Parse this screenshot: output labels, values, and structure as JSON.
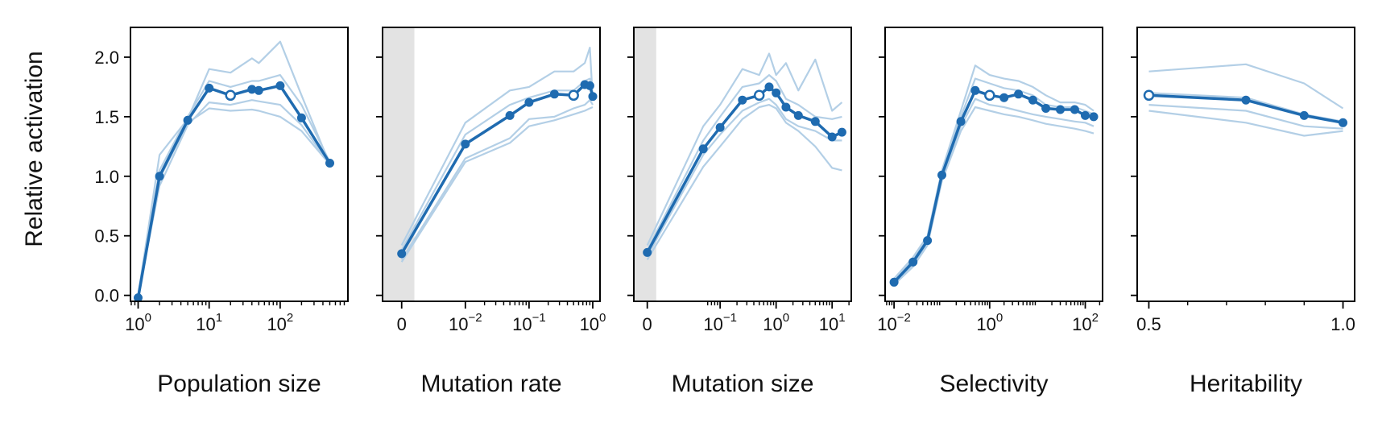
{
  "figure": {
    "ylabel": "Relative activation",
    "colors": {
      "main": "#1f6bb0",
      "faint": "#b3cfe6",
      "shade": "#e3e3e3",
      "axis": "#000000"
    }
  },
  "chart_data": [
    {
      "type": "line",
      "xlabel": "Population size",
      "ylabel": "Relative activation",
      "xscale": "log",
      "xlim": [
        0.78,
        900
      ],
      "ylim": [
        -0.05,
        2.25
      ],
      "yticks": [
        0.0,
        0.5,
        1.0,
        1.5,
        2.0
      ],
      "ytick_labels": [
        "0.0",
        "0.5",
        "1.0",
        "1.5",
        "2.0"
      ],
      "xticks": [
        {
          "value": 1,
          "base": "10",
          "exp": "0"
        },
        {
          "value": 10,
          "base": "10",
          "exp": "1"
        },
        {
          "value": 100,
          "base": "10",
          "exp": "2"
        }
      ],
      "shaded_region": null,
      "series": [
        {
          "role": "mean",
          "x": [
            1,
            2,
            5,
            10,
            20,
            40,
            50,
            100,
            200,
            500
          ],
          "y": [
            -0.02,
            1.0,
            1.47,
            1.74,
            1.68,
            1.73,
            1.72,
            1.76,
            1.49,
            1.11
          ],
          "open_point_index": 4
        },
        {
          "role": "replicate",
          "x": [
            1,
            2,
            5,
            10,
            20,
            40,
            50,
            100,
            200,
            500
          ],
          "y": [
            0.0,
            1.18,
            1.48,
            1.9,
            1.87,
            1.99,
            1.95,
            2.13,
            1.68,
            1.1
          ]
        },
        {
          "role": "replicate",
          "x": [
            1,
            2,
            5,
            10,
            20,
            40,
            50,
            100,
            200,
            500
          ],
          "y": [
            0.0,
            1.05,
            1.5,
            1.8,
            1.75,
            1.8,
            1.8,
            1.85,
            1.6,
            1.12
          ]
        },
        {
          "role": "replicate",
          "x": [
            1,
            2,
            5,
            10,
            20,
            40,
            50,
            100,
            200,
            500
          ],
          "y": [
            0.0,
            0.92,
            1.43,
            1.62,
            1.6,
            1.64,
            1.63,
            1.6,
            1.43,
            1.1
          ]
        },
        {
          "role": "replicate",
          "x": [
            1,
            2,
            5,
            10,
            20,
            40,
            50,
            100,
            200,
            500
          ],
          "y": [
            0.0,
            0.98,
            1.45,
            1.57,
            1.55,
            1.56,
            1.55,
            1.5,
            1.38,
            1.1
          ]
        }
      ]
    },
    {
      "type": "line",
      "xlabel": "Mutation rate",
      "ylabel": "",
      "xscale": "symlog",
      "linthresh": 0.01,
      "xlim": [
        -0.003,
        1.3
      ],
      "ylim": [
        -0.05,
        2.25
      ],
      "yticks": [
        0.0,
        0.5,
        1.0,
        1.5,
        2.0
      ],
      "ytick_labels": [],
      "xticks": [
        {
          "value": 0,
          "base": "0",
          "exp": ""
        },
        {
          "value": 0.01,
          "base": "10",
          "exp": "−2"
        },
        {
          "value": 0.1,
          "base": "10",
          "exp": "−1"
        },
        {
          "value": 1,
          "base": "10",
          "exp": "0"
        }
      ],
      "shaded_region": [
        -0.003,
        0.002
      ],
      "series": [
        {
          "role": "mean",
          "x": [
            0,
            0.01,
            0.05,
            0.1,
            0.25,
            0.5,
            0.75,
            0.9,
            1.0
          ],
          "y": [
            0.35,
            1.27,
            1.51,
            1.62,
            1.69,
            1.68,
            1.77,
            1.76,
            1.67
          ],
          "open_point_index": 5
        },
        {
          "role": "replicate",
          "x": [
            0,
            0.01,
            0.05,
            0.1,
            0.25,
            0.5,
            0.75,
            0.9,
            1.0
          ],
          "y": [
            0.42,
            1.45,
            1.72,
            1.75,
            1.88,
            1.88,
            1.95,
            2.08,
            1.65
          ]
        },
        {
          "role": "replicate",
          "x": [
            0,
            0.01,
            0.05,
            0.1,
            0.25,
            0.5,
            0.75,
            0.9,
            1.0
          ],
          "y": [
            0.38,
            1.35,
            1.6,
            1.66,
            1.72,
            1.72,
            1.8,
            1.82,
            1.7
          ]
        },
        {
          "role": "replicate",
          "x": [
            0,
            0.01,
            0.05,
            0.1,
            0.25,
            0.5,
            0.75,
            0.9,
            1.0
          ],
          "y": [
            0.3,
            1.15,
            1.32,
            1.48,
            1.5,
            1.57,
            1.6,
            1.64,
            1.6
          ]
        },
        {
          "role": "replicate",
          "x": [
            0,
            0.01,
            0.05,
            0.1,
            0.25,
            0.5,
            0.75,
            0.9,
            1.0
          ],
          "y": [
            0.28,
            1.12,
            1.28,
            1.42,
            1.47,
            1.52,
            1.55,
            1.57,
            1.58
          ]
        }
      ]
    },
    {
      "type": "line",
      "xlabel": "Mutation size",
      "ylabel": "",
      "xscale": "symlog",
      "linthresh": 0.05,
      "xlim": [
        -0.012,
        22
      ],
      "ylim": [
        -0.05,
        2.25
      ],
      "yticks": [
        0.0,
        0.5,
        1.0,
        1.5,
        2.0
      ],
      "ytick_labels": [],
      "xticks": [
        {
          "value": 0,
          "base": "0",
          "exp": ""
        },
        {
          "value": 0.1,
          "base": "10",
          "exp": "−1"
        },
        {
          "value": 1,
          "base": "10",
          "exp": "0"
        },
        {
          "value": 10,
          "base": "10",
          "exp": "1"
        }
      ],
      "shaded_region": [
        -0.012,
        0.008
      ],
      "series": [
        {
          "role": "mean",
          "x": [
            0,
            0.05,
            0.1,
            0.25,
            0.5,
            0.75,
            1.0,
            1.5,
            2.5,
            5,
            10,
            15
          ],
          "y": [
            0.36,
            1.23,
            1.41,
            1.64,
            1.68,
            1.75,
            1.7,
            1.58,
            1.51,
            1.46,
            1.33,
            1.37
          ],
          "open_point_index": 4
        },
        {
          "role": "replicate",
          "x": [
            0,
            0.05,
            0.1,
            0.25,
            0.5,
            0.75,
            1.0,
            1.5,
            2.5,
            5,
            10,
            15
          ],
          "y": [
            0.42,
            1.42,
            1.6,
            1.9,
            1.85,
            2.03,
            1.85,
            1.95,
            1.72,
            1.98,
            1.55,
            1.62
          ]
        },
        {
          "role": "replicate",
          "x": [
            0,
            0.05,
            0.1,
            0.25,
            0.5,
            0.75,
            1.0,
            1.5,
            2.5,
            5,
            10,
            15
          ],
          "y": [
            0.38,
            1.3,
            1.5,
            1.75,
            1.78,
            1.85,
            1.8,
            1.65,
            1.6,
            1.5,
            1.48,
            1.5
          ]
        },
        {
          "role": "replicate",
          "x": [
            0,
            0.05,
            0.1,
            0.25,
            0.5,
            0.75,
            1.0,
            1.5,
            2.5,
            5,
            10,
            15
          ],
          "y": [
            0.33,
            1.18,
            1.35,
            1.55,
            1.62,
            1.65,
            1.6,
            1.48,
            1.42,
            1.38,
            1.3,
            1.3
          ]
        },
        {
          "role": "replicate",
          "x": [
            0,
            0.05,
            0.1,
            0.25,
            0.5,
            0.75,
            1.0,
            1.5,
            2.5,
            5,
            10,
            15
          ],
          "y": [
            0.3,
            1.08,
            1.25,
            1.48,
            1.58,
            1.6,
            1.57,
            1.45,
            1.38,
            1.25,
            1.07,
            1.05
          ]
        }
      ]
    },
    {
      "type": "line",
      "xlabel": "Selectivity",
      "ylabel": "",
      "xscale": "log",
      "xlim": [
        0.0065,
        230
      ],
      "ylim": [
        -0.05,
        2.25
      ],
      "yticks": [
        0.0,
        0.5,
        1.0,
        1.5,
        2.0
      ],
      "ytick_labels": [],
      "xticks": [
        {
          "value": 0.01,
          "base": "10",
          "exp": "−2"
        },
        {
          "value": 1,
          "base": "10",
          "exp": "0"
        },
        {
          "value": 100,
          "base": "10",
          "exp": "2"
        }
      ],
      "shaded_region": null,
      "series": [
        {
          "role": "mean",
          "x": [
            0.01,
            0.025,
            0.05,
            0.1,
            0.25,
            0.5,
            1,
            2,
            4,
            8,
            15,
            30,
            60,
            100,
            150
          ],
          "y": [
            0.11,
            0.28,
            0.46,
            1.01,
            1.46,
            1.72,
            1.68,
            1.66,
            1.69,
            1.64,
            1.57,
            1.56,
            1.56,
            1.51,
            1.5
          ],
          "open_point_index": 6
        },
        {
          "role": "replicate",
          "x": [
            0.01,
            0.025,
            0.05,
            0.1,
            0.25,
            0.5,
            1,
            2,
            4,
            8,
            15,
            30,
            60,
            100,
            150
          ],
          "y": [
            0.14,
            0.32,
            0.5,
            1.05,
            1.55,
            1.93,
            1.85,
            1.82,
            1.8,
            1.75,
            1.68,
            1.62,
            1.62,
            1.6,
            1.55
          ]
        },
        {
          "role": "replicate",
          "x": [
            0.01,
            0.025,
            0.05,
            0.1,
            0.25,
            0.5,
            1,
            2,
            4,
            8,
            15,
            30,
            60,
            100,
            150
          ],
          "y": [
            0.12,
            0.3,
            0.48,
            1.03,
            1.5,
            1.82,
            1.78,
            1.74,
            1.72,
            1.68,
            1.6,
            1.58,
            1.58,
            1.55,
            1.52
          ]
        },
        {
          "role": "replicate",
          "x": [
            0.01,
            0.025,
            0.05,
            0.1,
            0.25,
            0.5,
            1,
            2,
            4,
            8,
            15,
            30,
            60,
            100,
            150
          ],
          "y": [
            0.1,
            0.26,
            0.44,
            0.98,
            1.42,
            1.65,
            1.6,
            1.58,
            1.55,
            1.52,
            1.5,
            1.48,
            1.46,
            1.45,
            1.42
          ]
        },
        {
          "role": "replicate",
          "x": [
            0.01,
            0.025,
            0.05,
            0.1,
            0.25,
            0.5,
            1,
            2,
            4,
            8,
            15,
            30,
            60,
            100,
            150
          ],
          "y": [
            0.09,
            0.24,
            0.42,
            0.96,
            1.38,
            1.58,
            1.55,
            1.52,
            1.5,
            1.47,
            1.44,
            1.42,
            1.4,
            1.38,
            1.36
          ]
        }
      ]
    },
    {
      "type": "line",
      "xlabel": "Heritability",
      "ylabel": "",
      "xscale": "linear",
      "xlim": [
        0.47,
        1.03
      ],
      "ylim": [
        -0.05,
        2.25
      ],
      "yticks": [
        0.0,
        0.5,
        1.0,
        1.5,
        2.0
      ],
      "ytick_labels": [],
      "xticks": [
        {
          "value": 0.5,
          "base": "0.5",
          "exp": ""
        },
        {
          "value": 1.0,
          "base": "1.0",
          "exp": ""
        }
      ],
      "xminor": [
        0.6,
        0.7,
        0.8,
        0.9
      ],
      "shaded_region": null,
      "series": [
        {
          "role": "mean",
          "x": [
            0.5,
            0.75,
            0.9,
            1.0
          ],
          "y": [
            1.68,
            1.64,
            1.51,
            1.45
          ],
          "open_point_index": 0
        },
        {
          "role": "replicate",
          "x": [
            0.5,
            0.75,
            0.9,
            1.0
          ],
          "y": [
            1.88,
            1.94,
            1.78,
            1.57
          ]
        },
        {
          "role": "replicate",
          "x": [
            0.5,
            0.75,
            0.9,
            1.0
          ],
          "y": [
            1.7,
            1.66,
            1.52,
            1.46
          ]
        },
        {
          "role": "replicate",
          "x": [
            0.5,
            0.75,
            0.9,
            1.0
          ],
          "y": [
            1.6,
            1.55,
            1.42,
            1.4
          ]
        },
        {
          "role": "replicate",
          "x": [
            0.5,
            0.75,
            0.9,
            1.0
          ],
          "y": [
            1.55,
            1.45,
            1.34,
            1.38
          ]
        }
      ]
    }
  ]
}
